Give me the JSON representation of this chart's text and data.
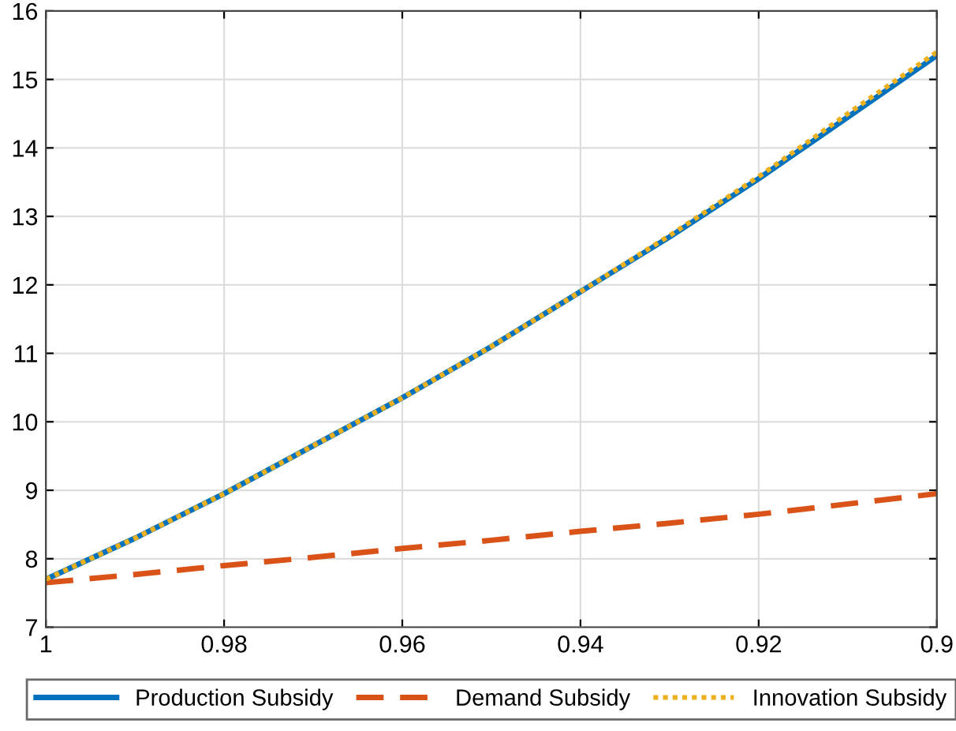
{
  "chart_data": {
    "type": "line",
    "x": [
      1,
      0.99,
      0.98,
      0.97,
      0.96,
      0.95,
      0.94,
      0.93,
      0.92,
      0.91,
      0.9
    ],
    "series": [
      {
        "name": "Production Subsidy",
        "color": "#0072bd",
        "line_style": "solid",
        "values": [
          7.7,
          8.3,
          8.95,
          9.65,
          10.35,
          11.1,
          11.9,
          12.7,
          13.55,
          14.45,
          15.35
        ]
      },
      {
        "name": "Demand Subsidy",
        "color": "#d95319",
        "line_style": "dashed",
        "values": [
          7.65,
          7.77,
          7.9,
          8.02,
          8.15,
          8.27,
          8.4,
          8.52,
          8.65,
          8.8,
          8.95
        ]
      },
      {
        "name": "Innovation Subsidy",
        "color": "#edb120",
        "line_style": "dotted",
        "values": [
          7.7,
          8.3,
          8.95,
          9.65,
          10.35,
          11.1,
          11.9,
          12.72,
          13.58,
          14.5,
          15.4
        ]
      }
    ],
    "xlim": [
      1,
      0.9
    ],
    "xticks": [
      1,
      0.98,
      0.96,
      0.94,
      0.92,
      0.9
    ],
    "ylim": [
      7,
      16
    ],
    "yticks": [
      7,
      8,
      9,
      10,
      11,
      12,
      13,
      14,
      15,
      16
    ],
    "grid": true,
    "legend": "bottom"
  }
}
